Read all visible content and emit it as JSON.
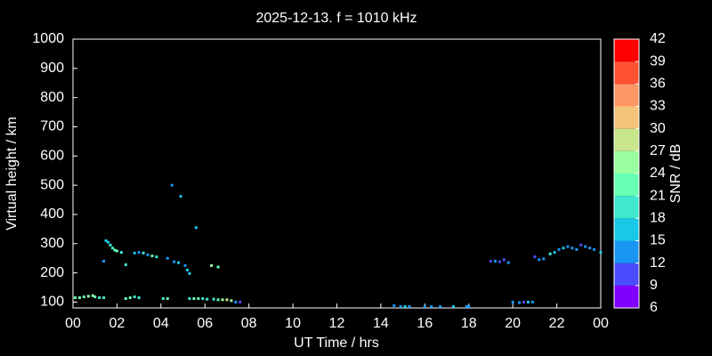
{
  "chart_data": {
    "type": "scatter",
    "title": "2025-12-13. f = 1010 kHz",
    "xlabel": "UT Time / hrs",
    "ylabel": "Virtual height / km",
    "xlim": [
      0,
      24
    ],
    "ylim": [
      80,
      1000
    ],
    "xticks": [
      {
        "value": 0,
        "label": "00"
      },
      {
        "value": 2,
        "label": "02"
      },
      {
        "value": 4,
        "label": "04"
      },
      {
        "value": 6,
        "label": "06"
      },
      {
        "value": 8,
        "label": "08"
      },
      10,
      12,
      14,
      16,
      18,
      20,
      22,
      {
        "value": 24,
        "label": "00"
      }
    ],
    "yticks": [
      100,
      200,
      300,
      400,
      500,
      600,
      700,
      800,
      900,
      1000
    ],
    "x": [
      0.1,
      0.3,
      0.5,
      0.7,
      0.9,
      1.0,
      1.2,
      1.4,
      2.4,
      2.6,
      2.8,
      3.0,
      4.1,
      4.3,
      5.3,
      5.5,
      5.7,
      5.9,
      6.1,
      6.4,
      6.6,
      6.8,
      7.0,
      7.2,
      7.4,
      7.6,
      1.4,
      1.5,
      1.6,
      1.7,
      1.8,
      1.9,
      2.0,
      2.2,
      2.4,
      2.8,
      3.0,
      3.2,
      3.4,
      3.6,
      3.8,
      4.3,
      4.6,
      4.8,
      5.1,
      5.2,
      5.3,
      6.3,
      6.6,
      4.5,
      4.9,
      5.6,
      14.6,
      14.9,
      15.1,
      15.3,
      16.0,
      16.3,
      16.7,
      17.3,
      17.9,
      18.0,
      19.0,
      19.2,
      19.4,
      19.6,
      19.8,
      20.0,
      20.3,
      20.5,
      20.7,
      20.9,
      21.0,
      21.2,
      21.4,
      21.7,
      21.9,
      22.1,
      22.3,
      22.5,
      22.7,
      22.9,
      23.1,
      23.3,
      23.5,
      23.7,
      24.0
    ],
    "y": [
      115,
      115,
      118,
      120,
      122,
      118,
      115,
      115,
      112,
      115,
      118,
      115,
      112,
      112,
      112,
      112,
      112,
      112,
      110,
      110,
      108,
      108,
      108,
      105,
      100,
      100,
      240,
      310,
      305,
      295,
      285,
      278,
      275,
      270,
      228,
      268,
      270,
      268,
      262,
      258,
      255,
      250,
      238,
      235,
      225,
      210,
      198,
      225,
      220,
      500,
      462,
      355,
      88,
      85,
      85,
      85,
      85,
      85,
      85,
      85,
      85,
      85,
      240,
      240,
      238,
      245,
      235,
      100,
      98,
      100,
      100,
      100,
      255,
      245,
      248,
      265,
      270,
      280,
      285,
      290,
      285,
      280,
      295,
      290,
      285,
      280,
      270
    ],
    "snr": [
      22,
      21,
      22,
      24,
      25,
      22,
      20,
      19,
      21,
      22,
      20,
      18,
      20,
      21,
      20,
      22,
      21,
      19,
      20,
      18,
      22,
      25,
      27,
      24,
      12,
      10,
      14,
      16,
      17,
      18,
      20,
      22,
      21,
      19,
      20,
      16,
      14,
      18,
      12,
      22,
      20,
      14,
      12,
      16,
      14,
      15,
      16,
      24,
      22,
      12,
      15,
      17,
      14,
      12,
      15,
      14,
      14,
      12,
      13,
      15,
      14,
      12,
      10,
      12,
      9,
      11,
      13,
      12,
      14,
      10,
      15,
      12,
      11,
      12,
      13,
      18,
      16,
      14,
      15,
      13,
      12,
      14,
      11,
      13,
      12,
      14,
      15
    ],
    "colorbar": {
      "label": "SNR / dB",
      "lim": [
        6,
        42
      ],
      "ticks": [
        6,
        9,
        12,
        15,
        18,
        21,
        24,
        27,
        30,
        33,
        36,
        39,
        42
      ],
      "colors": [
        "#8000ff",
        "#4c4cff",
        "#1996f3",
        "#19c8e6",
        "#40e8d0",
        "#66ffb3",
        "#99ffa0",
        "#c8e68c",
        "#f3c47a",
        "#ff9666",
        "#ff5233",
        "#ff0000"
      ]
    }
  }
}
